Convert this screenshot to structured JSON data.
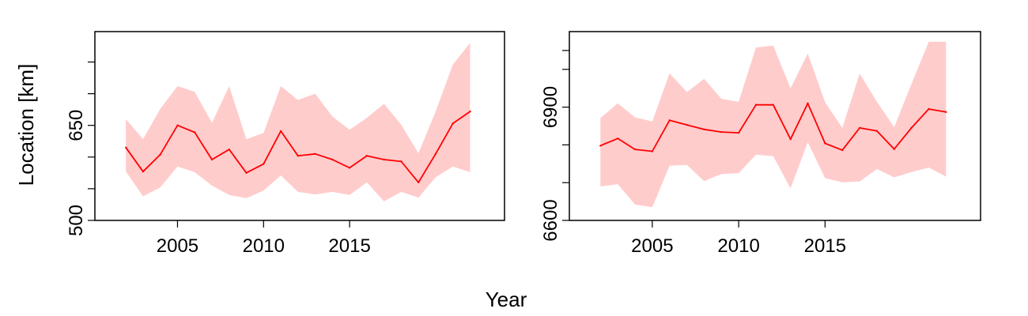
{
  "figure": {
    "xlabel": "Year",
    "ylabel": "Location [km]"
  },
  "chart_data": [
    {
      "type": "line",
      "x": [
        2002,
        2003,
        2004,
        2005,
        2006,
        2007,
        2008,
        2009,
        2010,
        2011,
        2012,
        2013,
        2014,
        2015,
        2016,
        2017,
        2018,
        2019,
        2020,
        2021,
        2022
      ],
      "series": [
        {
          "color": "#ff0000",
          "values": [
            615,
            577,
            604,
            650,
            639,
            596,
            612,
            575,
            589,
            641,
            602,
            605,
            596,
            583,
            602,
            596,
            593,
            560,
            605,
            653,
            672
          ],
          "band_lower": [
            577,
            538,
            552,
            585,
            576,
            555,
            540,
            535,
            547,
            571,
            545,
            541,
            545,
            540,
            560,
            530,
            545,
            536,
            568,
            585,
            576
          ],
          "band_upper": [
            660,
            628,
            676,
            712,
            703,
            654,
            712,
            628,
            638,
            712,
            690,
            700,
            664,
            643,
            662,
            684,
            651,
            606,
            672,
            746,
            780
          ]
        }
      ],
      "band_color": "#ffcccc",
      "xticks": [
        2005,
        2010,
        2015
      ],
      "yticks": [
        500,
        650
      ],
      "xlim": [
        2000.2,
        2024.0
      ],
      "ylim": [
        500,
        798
      ],
      "grid": false
    },
    {
      "type": "line",
      "x": [
        2002,
        2003,
        2004,
        2005,
        2006,
        2007,
        2008,
        2009,
        2010,
        2011,
        2012,
        2013,
        2014,
        2015,
        2016,
        2017,
        2018,
        2019,
        2020,
        2021,
        2022
      ],
      "series": [
        {
          "color": "#ff0000",
          "values": [
            6798,
            6817,
            6788,
            6783,
            6865,
            6853,
            6841,
            6834,
            6832,
            6906,
            6906,
            6815,
            6910,
            6804,
            6786,
            6845,
            6837,
            6789,
            6845,
            6895,
            6887
          ],
          "band_lower": [
            6690,
            6696,
            6642,
            6635,
            6745,
            6747,
            6704,
            6723,
            6725,
            6774,
            6770,
            6685,
            6807,
            6712,
            6701,
            6703,
            6736,
            6714,
            6728,
            6740,
            6716
          ],
          "band_upper": [
            6871,
            6910,
            6873,
            6862,
            6990,
            6940,
            6975,
            6922,
            6914,
            7058,
            7063,
            6950,
            7042,
            6913,
            6845,
            6989,
            6914,
            6847,
            6961,
            7073,
            7073
          ]
        }
      ],
      "band_color": "#ffcccc",
      "xticks": [
        2005,
        2010,
        2015
      ],
      "yticks": [
        6600,
        6900
      ],
      "xlim": [
        2000.2,
        2024.0
      ],
      "ylim": [
        6600,
        7100
      ],
      "grid": false
    }
  ]
}
